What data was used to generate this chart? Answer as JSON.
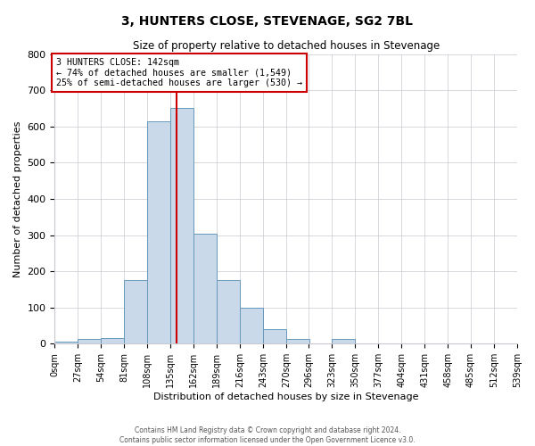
{
  "title": "3, HUNTERS CLOSE, STEVENAGE, SG2 7BL",
  "subtitle": "Size of property relative to detached houses in Stevenage",
  "xlabel": "Distribution of detached houses by size in Stevenage",
  "ylabel": "Number of detached properties",
  "bar_color": "#c9d9ea",
  "bar_edge_color": "#6699bb",
  "background_color": "#ffffff",
  "grid_color": "#c8c8d0",
  "bin_edges": [
    0,
    27,
    54,
    81,
    108,
    135,
    162,
    189,
    216,
    243,
    270,
    296,
    323,
    350,
    377,
    404,
    431,
    458,
    485,
    512,
    539
  ],
  "bin_labels": [
    "0sqm",
    "27sqm",
    "54sqm",
    "81sqm",
    "108sqm",
    "135sqm",
    "162sqm",
    "189sqm",
    "216sqm",
    "243sqm",
    "270sqm",
    "296sqm",
    "323sqm",
    "350sqm",
    "377sqm",
    "404sqm",
    "431sqm",
    "458sqm",
    "485sqm",
    "512sqm",
    "539sqm"
  ],
  "counts": [
    5,
    12,
    15,
    175,
    615,
    650,
    305,
    175,
    100,
    40,
    12,
    0,
    12,
    0,
    0,
    0,
    0,
    0,
    0,
    0
  ],
  "vline_x": 142,
  "vline_color": "#cc0000",
  "annotation_text": "3 HUNTERS CLOSE: 142sqm\n← 74% of detached houses are smaller (1,549)\n25% of semi-detached houses are larger (530) →",
  "annotation_box_color": "#ffffff",
  "annotation_box_edge": "#cc0000",
  "ylim": [
    0,
    800
  ],
  "yticks": [
    0,
    100,
    200,
    300,
    400,
    500,
    600,
    700,
    800
  ],
  "footer_line1": "Contains HM Land Registry data © Crown copyright and database right 2024.",
  "footer_line2": "Contains public sector information licensed under the Open Government Licence v3.0."
}
